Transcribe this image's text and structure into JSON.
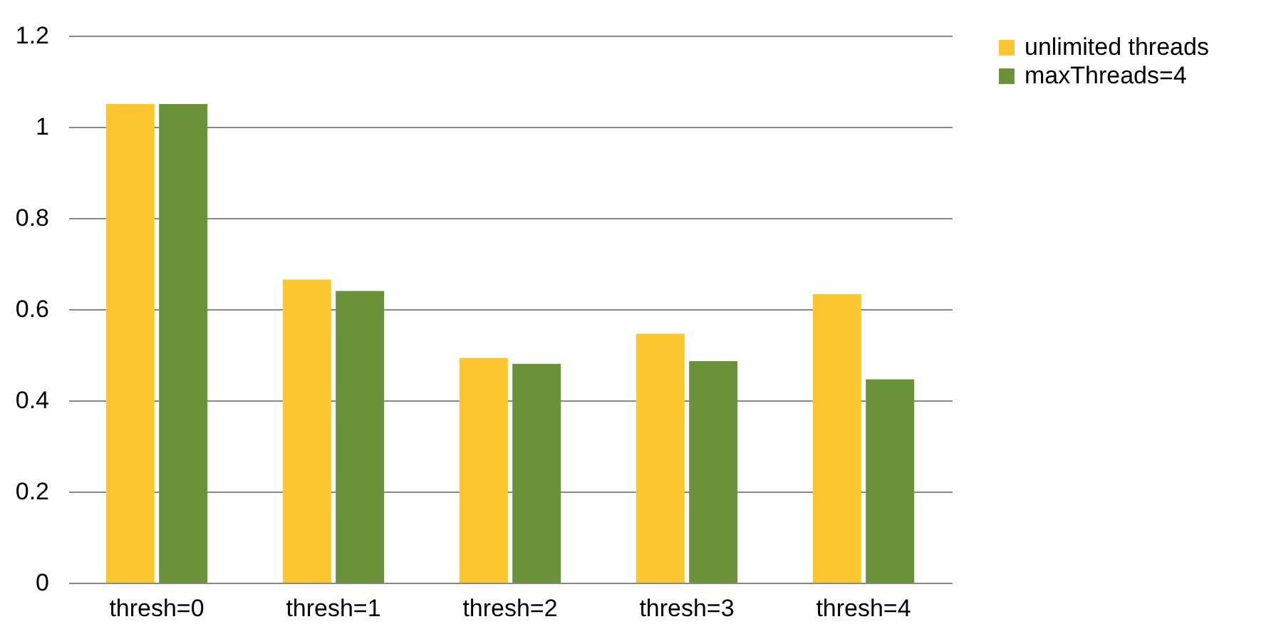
{
  "chart_data": {
    "type": "bar",
    "categories": [
      "thresh=0",
      "thresh=1",
      "thresh=2",
      "thresh=3",
      "thresh=4"
    ],
    "series": [
      {
        "name": "unlimited threads",
        "color": "#fcc630",
        "values": [
          1.05,
          0.665,
          0.493,
          0.546,
          0.633
        ]
      },
      {
        "name": "maxThreads=4",
        "color": "#6a9339",
        "values": [
          1.05,
          0.64,
          0.48,
          0.486,
          0.446
        ]
      }
    ],
    "ylim": [
      0,
      1.2
    ],
    "yticks": [
      0,
      0.2,
      0.4,
      0.6,
      0.8,
      1,
      1.2
    ],
    "grid": "y",
    "legend": "right"
  }
}
